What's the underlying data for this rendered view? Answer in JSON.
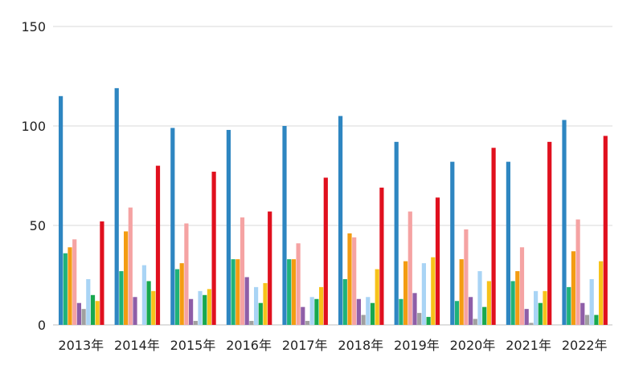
{
  "chart_data": {
    "type": "bar",
    "categories": [
      "2013年",
      "2014年",
      "2015年",
      "2016年",
      "2017年",
      "2018年",
      "2019年",
      "2020年",
      "2021年",
      "2022年"
    ],
    "ylim": [
      0,
      150
    ],
    "yticks": [
      0,
      50,
      100,
      150
    ],
    "grid": true,
    "series": [
      {
        "color": "#2e86c1",
        "values": [
          115,
          119,
          99,
          98,
          100,
          105,
          92,
          82,
          82,
          103
        ]
      },
      {
        "color": "#1fb27a",
        "values": [
          36,
          27,
          28,
          33,
          33,
          23,
          13,
          12,
          22,
          19
        ]
      },
      {
        "color": "#f39c12",
        "values": [
          39,
          47,
          31,
          33,
          33,
          46,
          32,
          33,
          27,
          37
        ]
      },
      {
        "color": "#f5a3a3",
        "values": [
          43,
          59,
          51,
          54,
          41,
          44,
          57,
          48,
          39,
          53
        ]
      },
      {
        "color": "#8e5ea8",
        "values": [
          11,
          14,
          13,
          24,
          9,
          13,
          16,
          14,
          8,
          11
        ]
      },
      {
        "color": "#a0a0a0",
        "values": [
          8,
          0,
          2,
          2,
          2,
          5,
          6,
          3,
          1,
          5
        ]
      },
      {
        "color": "#a9d4f5",
        "values": [
          23,
          30,
          17,
          19,
          14,
          14,
          31,
          27,
          17,
          23
        ]
      },
      {
        "color": "#18a84f",
        "values": [
          15,
          22,
          15,
          11,
          13,
          11,
          4,
          9,
          11,
          5
        ]
      },
      {
        "color": "#f7c21a",
        "values": [
          12,
          17,
          18,
          21,
          19,
          28,
          34,
          22,
          17,
          32
        ]
      },
      {
        "color": "#e0101e",
        "values": [
          52,
          80,
          77,
          57,
          74,
          69,
          64,
          89,
          92,
          95
        ]
      }
    ]
  }
}
